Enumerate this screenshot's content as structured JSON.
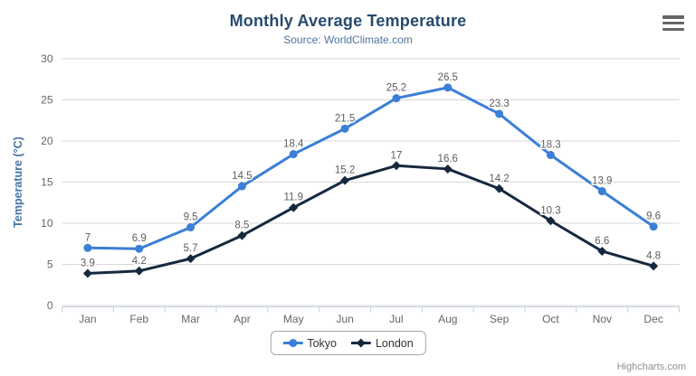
{
  "chart": {
    "credits_label": "Highcharts.com",
    "menu_icon": "hamburger-icon"
  },
  "colors": {
    "title": "#274b6d",
    "subtitle": "#4d759e",
    "yaxis_title": "#4572a7",
    "tick_labels": "#666666",
    "data_labels": "#5e5e5e",
    "gridline": "#d8d8d8",
    "axis_line": "#c0d0e0",
    "legend_border": "#a7a7a7",
    "credits": "#909090",
    "tokyo_series": "#3b7fd6",
    "london_series": "#16283e"
  },
  "chart_data": {
    "type": "line",
    "title": "Monthly Average Temperature",
    "subtitle": "Source: WorldClimate.com",
    "categories": [
      "Jan",
      "Feb",
      "Mar",
      "Apr",
      "May",
      "Jun",
      "Jul",
      "Aug",
      "Sep",
      "Oct",
      "Nov",
      "Dec"
    ],
    "series": [
      {
        "name": "Tokyo",
        "color": "#3b7fd6",
        "marker": "circle",
        "values": [
          7,
          6.9,
          9.5,
          14.5,
          18.4,
          21.5,
          25.2,
          26.5,
          23.3,
          18.3,
          13.9,
          9.6
        ]
      },
      {
        "name": "London",
        "color": "#16283e",
        "marker": "diamond",
        "values": [
          3.9,
          4.2,
          5.7,
          8.5,
          11.9,
          15.2,
          17,
          16.6,
          14.2,
          10.3,
          6.6,
          4.8
        ]
      }
    ],
    "xlabel": "",
    "ylabel": "Temperature (°C)",
    "ylim": [
      0,
      30
    ],
    "y_ticks": [
      0,
      5,
      10,
      15,
      20,
      25,
      30
    ],
    "grid": true,
    "data_labels": true,
    "legend_position": "bottom-center"
  }
}
